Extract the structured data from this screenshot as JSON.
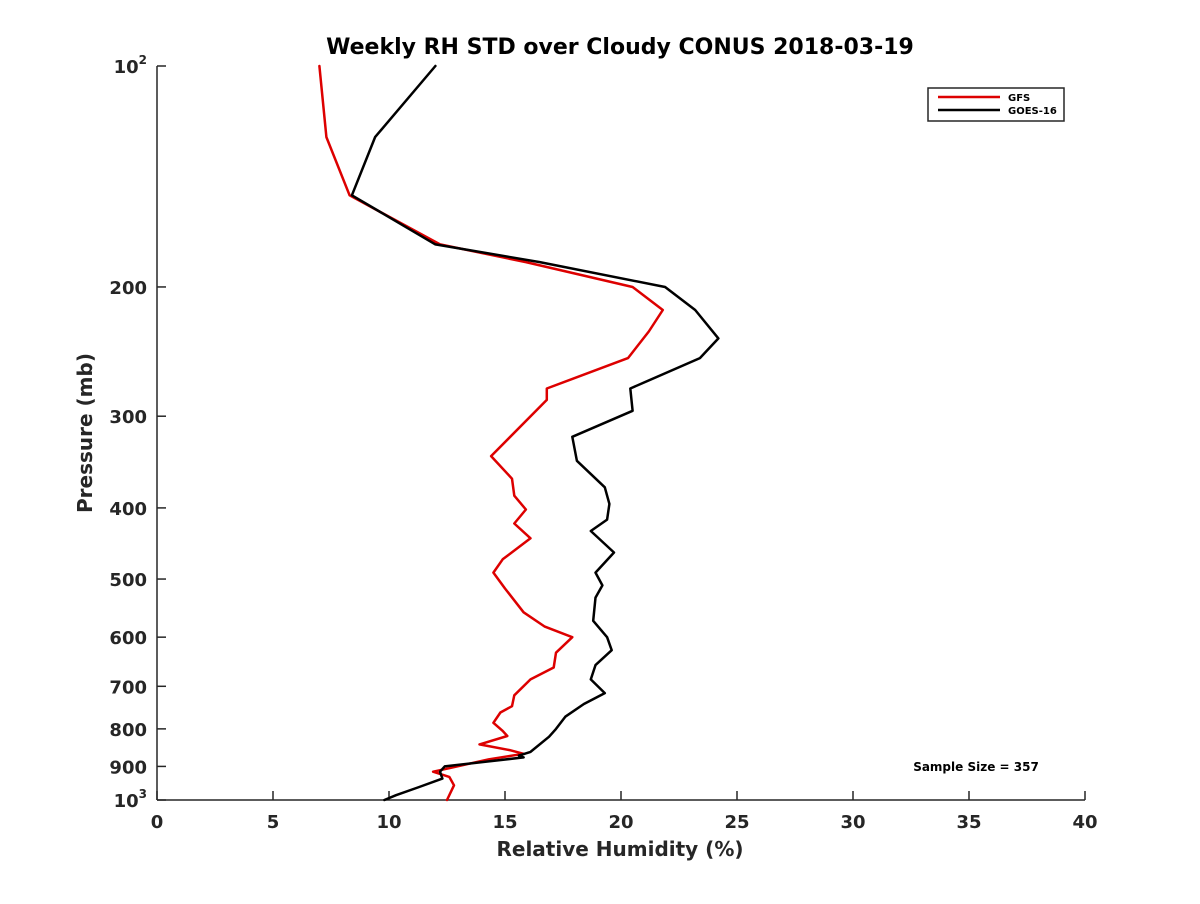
{
  "chart_data": {
    "type": "line",
    "title": "Weekly RH STD over Cloudy CONUS 2018-03-19",
    "xlabel": "Relative Humidity (%)",
    "ylabel": "Pressure (mb)",
    "xlim": [
      0,
      40
    ],
    "ylim": [
      100,
      1000
    ],
    "yscale": "log",
    "y_reversed": true,
    "grid": false,
    "legend_position": "top-right",
    "x_ticks": [
      "0",
      "5",
      "10",
      "15",
      "20",
      "25",
      "30",
      "35",
      "40"
    ],
    "x_tick_values": [
      0,
      5,
      10,
      15,
      20,
      25,
      30,
      35,
      40
    ],
    "y_ticks": [
      {
        "value": 100,
        "base": "10",
        "exp": "2"
      },
      {
        "value": 200,
        "base": "200",
        "exp": ""
      },
      {
        "value": 300,
        "base": "300",
        "exp": ""
      },
      {
        "value": 400,
        "base": "400",
        "exp": ""
      },
      {
        "value": 500,
        "base": "500",
        "exp": ""
      },
      {
        "value": 600,
        "base": "600",
        "exp": ""
      },
      {
        "value": 700,
        "base": "700",
        "exp": ""
      },
      {
        "value": 800,
        "base": "800",
        "exp": ""
      },
      {
        "value": 900,
        "base": "900",
        "exp": ""
      },
      {
        "value": 1000,
        "base": "10",
        "exp": "3"
      }
    ],
    "annotation": "Sample Size = 357",
    "series": [
      {
        "name": "GFS",
        "color": "#dd0000",
        "points": [
          [
            7.0,
            100
          ],
          [
            7.3,
            125
          ],
          [
            8.3,
            150
          ],
          [
            12.2,
            175
          ],
          [
            15.9,
            185
          ],
          [
            20.5,
            200
          ],
          [
            21.8,
            215
          ],
          [
            21.2,
            230
          ],
          [
            20.3,
            250
          ],
          [
            16.8,
            275
          ],
          [
            16.8,
            285
          ],
          [
            14.4,
            340
          ],
          [
            15.3,
            365
          ],
          [
            15.4,
            385
          ],
          [
            15.9,
            402
          ],
          [
            15.4,
            420
          ],
          [
            16.1,
            440
          ],
          [
            14.9,
            470
          ],
          [
            14.5,
            490
          ],
          [
            15.0,
            515
          ],
          [
            15.8,
            555
          ],
          [
            16.7,
            580
          ],
          [
            17.9,
            600
          ],
          [
            17.2,
            630
          ],
          [
            17.1,
            660
          ],
          [
            16.1,
            685
          ],
          [
            15.4,
            720
          ],
          [
            15.3,
            745
          ],
          [
            14.8,
            760
          ],
          [
            14.5,
            785
          ],
          [
            14.9,
            805
          ],
          [
            15.1,
            818
          ],
          [
            13.9,
            840
          ],
          [
            15.2,
            855
          ],
          [
            15.8,
            865
          ],
          [
            14.3,
            880
          ],
          [
            12.6,
            905
          ],
          [
            11.9,
            915
          ],
          [
            12.6,
            930
          ],
          [
            12.8,
            955
          ],
          [
            12.5,
            1000
          ]
        ]
      },
      {
        "name": "GOES-16",
        "color": "#000000",
        "points": [
          [
            12.0,
            100
          ],
          [
            9.4,
            125
          ],
          [
            8.4,
            150
          ],
          [
            12.0,
            175
          ],
          [
            16.5,
            185
          ],
          [
            21.9,
            200
          ],
          [
            23.2,
            215
          ],
          [
            24.2,
            235
          ],
          [
            23.4,
            250
          ],
          [
            20.4,
            275
          ],
          [
            20.5,
            295
          ],
          [
            17.9,
            320
          ],
          [
            18.1,
            345
          ],
          [
            19.3,
            375
          ],
          [
            19.5,
            395
          ],
          [
            19.4,
            415
          ],
          [
            18.7,
            430
          ],
          [
            19.7,
            460
          ],
          [
            18.9,
            490
          ],
          [
            19.2,
            510
          ],
          [
            18.9,
            530
          ],
          [
            18.8,
            570
          ],
          [
            19.4,
            600
          ],
          [
            19.6,
            625
          ],
          [
            18.9,
            655
          ],
          [
            18.7,
            685
          ],
          [
            19.3,
            715
          ],
          [
            18.4,
            740
          ],
          [
            17.6,
            770
          ],
          [
            17.2,
            800
          ],
          [
            16.9,
            820
          ],
          [
            16.1,
            860
          ],
          [
            15.6,
            870
          ],
          [
            15.8,
            875
          ],
          [
            12.4,
            900
          ],
          [
            12.2,
            915
          ],
          [
            12.3,
            935
          ],
          [
            11.3,
            960
          ],
          [
            10.3,
            985
          ],
          [
            9.8,
            1000
          ]
        ]
      }
    ]
  }
}
